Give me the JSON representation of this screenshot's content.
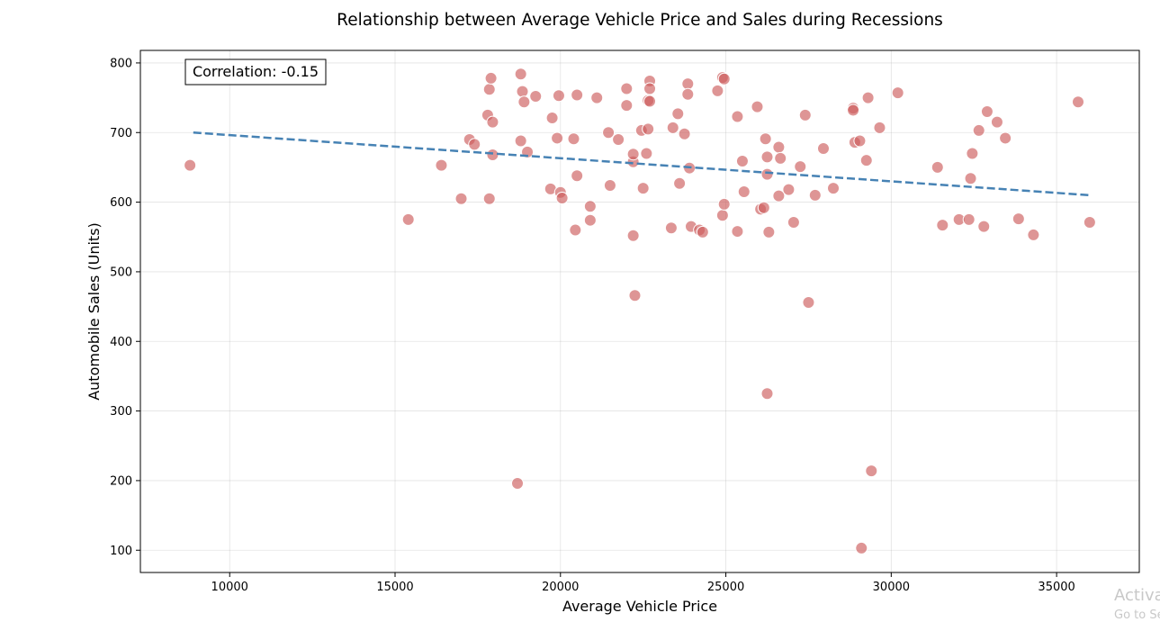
{
  "chart_data": {
    "type": "scatter",
    "title": "Relationship between Average Vehicle Price and Sales during Recessions",
    "xlabel": "Average Vehicle Price",
    "ylabel": "Automobile Sales (Units)",
    "xlim": [
      7300,
      37500
    ],
    "ylim": [
      68,
      818
    ],
    "xticks": [
      10000,
      15000,
      20000,
      25000,
      30000,
      35000
    ],
    "yticks": [
      100,
      200,
      300,
      400,
      500,
      600,
      700,
      800
    ],
    "grid": true,
    "annotation": "Correlation: -0.15",
    "point_color": "#cd5c5c",
    "trend_color": "#4682b4",
    "trendline": {
      "x": [
        8900,
        36000
      ],
      "y": [
        700,
        610
      ]
    },
    "points": [
      {
        "x": 8800,
        "y": 653
      },
      {
        "x": 15400,
        "y": 575
      },
      {
        "x": 16400,
        "y": 653
      },
      {
        "x": 17000,
        "y": 605
      },
      {
        "x": 17250,
        "y": 690
      },
      {
        "x": 17400,
        "y": 683
      },
      {
        "x": 17800,
        "y": 725
      },
      {
        "x": 17850,
        "y": 762
      },
      {
        "x": 17900,
        "y": 778
      },
      {
        "x": 17950,
        "y": 715
      },
      {
        "x": 17950,
        "y": 668
      },
      {
        "x": 17850,
        "y": 605
      },
      {
        "x": 18700,
        "y": 196
      },
      {
        "x": 18800,
        "y": 688
      },
      {
        "x": 18800,
        "y": 784
      },
      {
        "x": 18850,
        "y": 759
      },
      {
        "x": 18900,
        "y": 744
      },
      {
        "x": 19000,
        "y": 672
      },
      {
        "x": 19250,
        "y": 752
      },
      {
        "x": 19700,
        "y": 619
      },
      {
        "x": 19750,
        "y": 721
      },
      {
        "x": 19900,
        "y": 692
      },
      {
        "x": 19950,
        "y": 753
      },
      {
        "x": 20000,
        "y": 614
      },
      {
        "x": 20050,
        "y": 606
      },
      {
        "x": 20400,
        "y": 691
      },
      {
        "x": 20450,
        "y": 560
      },
      {
        "x": 20500,
        "y": 638
      },
      {
        "x": 20500,
        "y": 754
      },
      {
        "x": 20900,
        "y": 594
      },
      {
        "x": 20900,
        "y": 574
      },
      {
        "x": 21100,
        "y": 750
      },
      {
        "x": 21450,
        "y": 700
      },
      {
        "x": 21500,
        "y": 624
      },
      {
        "x": 21750,
        "y": 690
      },
      {
        "x": 22000,
        "y": 763
      },
      {
        "x": 22000,
        "y": 739
      },
      {
        "x": 22200,
        "y": 552
      },
      {
        "x": 22200,
        "y": 658
      },
      {
        "x": 22200,
        "y": 669
      },
      {
        "x": 22250,
        "y": 466
      },
      {
        "x": 22450,
        "y": 703
      },
      {
        "x": 22500,
        "y": 620
      },
      {
        "x": 22600,
        "y": 670
      },
      {
        "x": 22650,
        "y": 746
      },
      {
        "x": 22650,
        "y": 705
      },
      {
        "x": 22700,
        "y": 774
      },
      {
        "x": 22700,
        "y": 763
      },
      {
        "x": 22700,
        "y": 745
      },
      {
        "x": 23350,
        "y": 563
      },
      {
        "x": 23400,
        "y": 707
      },
      {
        "x": 23550,
        "y": 727
      },
      {
        "x": 23600,
        "y": 627
      },
      {
        "x": 23750,
        "y": 698
      },
      {
        "x": 23850,
        "y": 770
      },
      {
        "x": 23850,
        "y": 755
      },
      {
        "x": 23900,
        "y": 649
      },
      {
        "x": 23950,
        "y": 565
      },
      {
        "x": 24200,
        "y": 560
      },
      {
        "x": 24300,
        "y": 557
      },
      {
        "x": 24750,
        "y": 760
      },
      {
        "x": 24900,
        "y": 581
      },
      {
        "x": 24900,
        "y": 779
      },
      {
        "x": 24950,
        "y": 777
      },
      {
        "x": 24950,
        "y": 597
      },
      {
        "x": 25350,
        "y": 558
      },
      {
        "x": 25350,
        "y": 723
      },
      {
        "x": 25500,
        "y": 659
      },
      {
        "x": 25550,
        "y": 615
      },
      {
        "x": 25950,
        "y": 737
      },
      {
        "x": 26050,
        "y": 590
      },
      {
        "x": 26150,
        "y": 592
      },
      {
        "x": 26200,
        "y": 691
      },
      {
        "x": 26250,
        "y": 665
      },
      {
        "x": 26250,
        "y": 640
      },
      {
        "x": 26250,
        "y": 325
      },
      {
        "x": 26300,
        "y": 557
      },
      {
        "x": 26600,
        "y": 609
      },
      {
        "x": 26600,
        "y": 679
      },
      {
        "x": 26650,
        "y": 663
      },
      {
        "x": 26900,
        "y": 618
      },
      {
        "x": 27050,
        "y": 571
      },
      {
        "x": 27250,
        "y": 651
      },
      {
        "x": 27400,
        "y": 725
      },
      {
        "x": 27500,
        "y": 456
      },
      {
        "x": 27700,
        "y": 610
      },
      {
        "x": 27950,
        "y": 677
      },
      {
        "x": 28250,
        "y": 620
      },
      {
        "x": 28850,
        "y": 735
      },
      {
        "x": 28850,
        "y": 732
      },
      {
        "x": 28900,
        "y": 686
      },
      {
        "x": 29050,
        "y": 688
      },
      {
        "x": 29100,
        "y": 103
      },
      {
        "x": 29250,
        "y": 660
      },
      {
        "x": 29300,
        "y": 750
      },
      {
        "x": 29400,
        "y": 214
      },
      {
        "x": 29650,
        "y": 707
      },
      {
        "x": 30200,
        "y": 757
      },
      {
        "x": 31400,
        "y": 650
      },
      {
        "x": 31550,
        "y": 567
      },
      {
        "x": 32050,
        "y": 575
      },
      {
        "x": 32350,
        "y": 575
      },
      {
        "x": 32400,
        "y": 634
      },
      {
        "x": 32450,
        "y": 670
      },
      {
        "x": 32650,
        "y": 703
      },
      {
        "x": 32800,
        "y": 565
      },
      {
        "x": 32900,
        "y": 730
      },
      {
        "x": 33200,
        "y": 715
      },
      {
        "x": 33450,
        "y": 692
      },
      {
        "x": 33850,
        "y": 576
      },
      {
        "x": 34300,
        "y": 553
      },
      {
        "x": 35650,
        "y": 744
      },
      {
        "x": 36000,
        "y": 571
      }
    ]
  },
  "watermark": {
    "line1": "Activa",
    "line2": "Go to Se"
  }
}
